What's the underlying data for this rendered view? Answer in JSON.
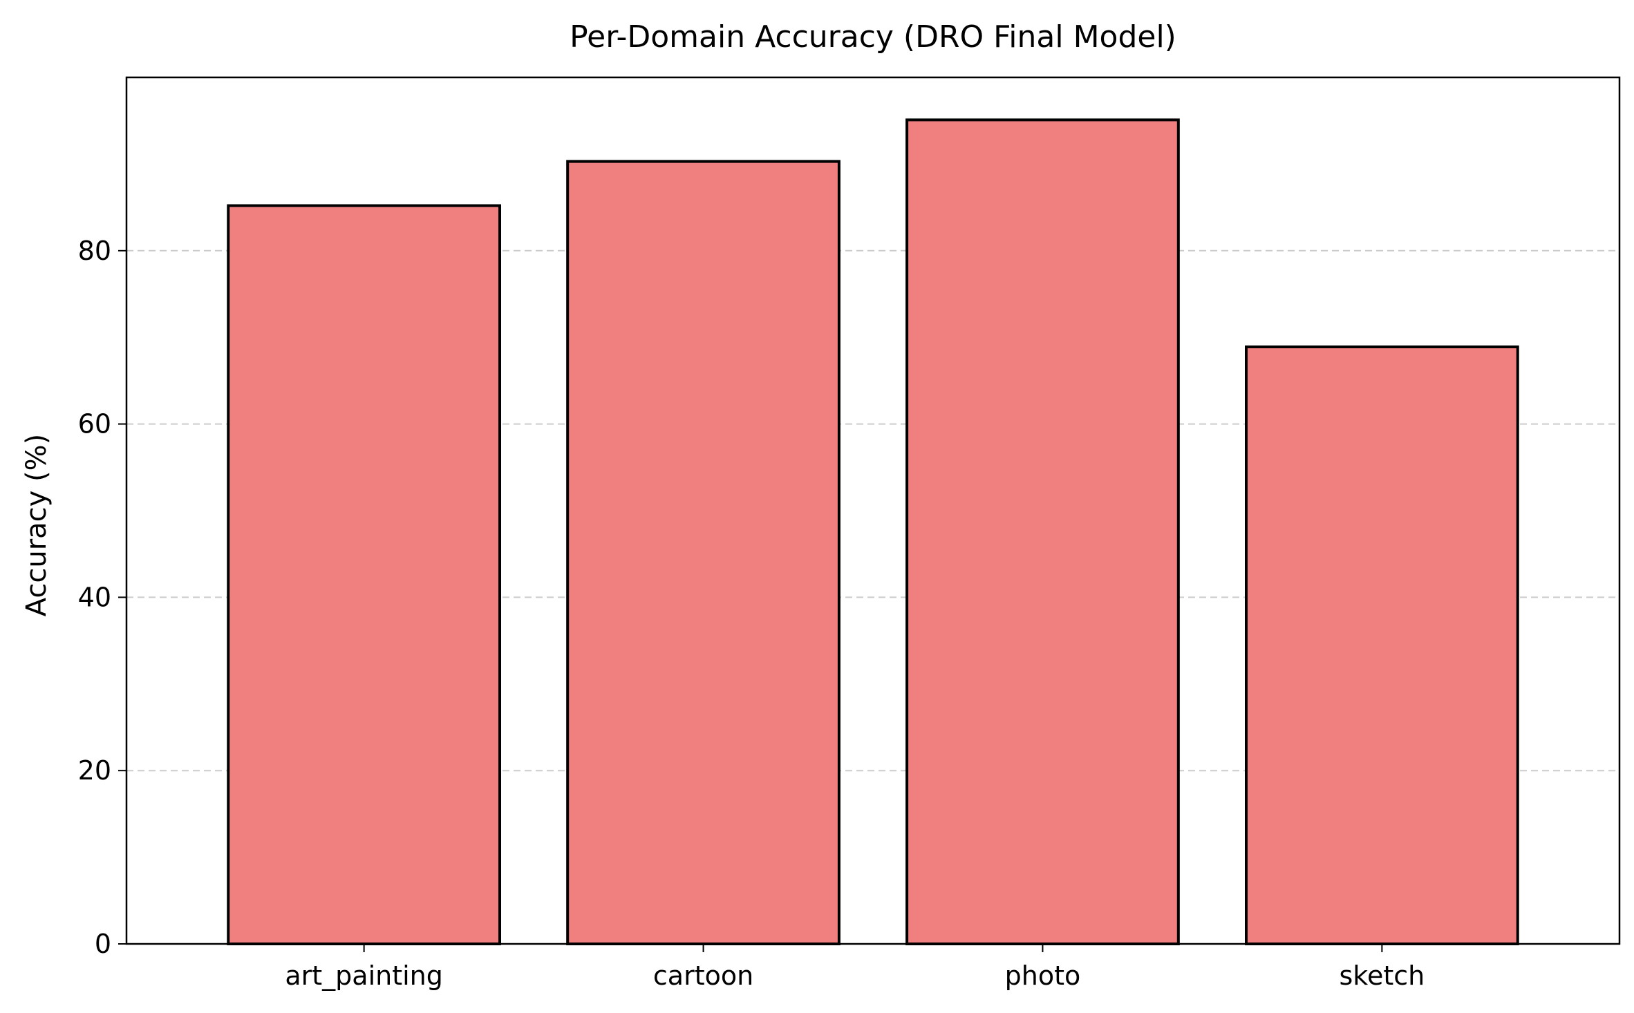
{
  "chart_data": {
    "type": "bar",
    "title": "Per-Domain Accuracy (DRO Final Model)",
    "xlabel": "",
    "ylabel": "Accuracy (%)",
    "categories": [
      "art_painting",
      "cartoon",
      "photo",
      "sketch"
    ],
    "values": [
      85.2,
      90.3,
      95.1,
      68.9
    ],
    "ylim": [
      0,
      100
    ],
    "yticks": [
      0,
      20,
      40,
      60,
      80
    ],
    "ytick_labels": [
      "0",
      "20",
      "40",
      "60",
      "80"
    ],
    "grid": {
      "axis": "y",
      "style": "dashed",
      "color": "#cccccc"
    },
    "bar_color": "#f08080",
    "edge_color": "#000000"
  }
}
